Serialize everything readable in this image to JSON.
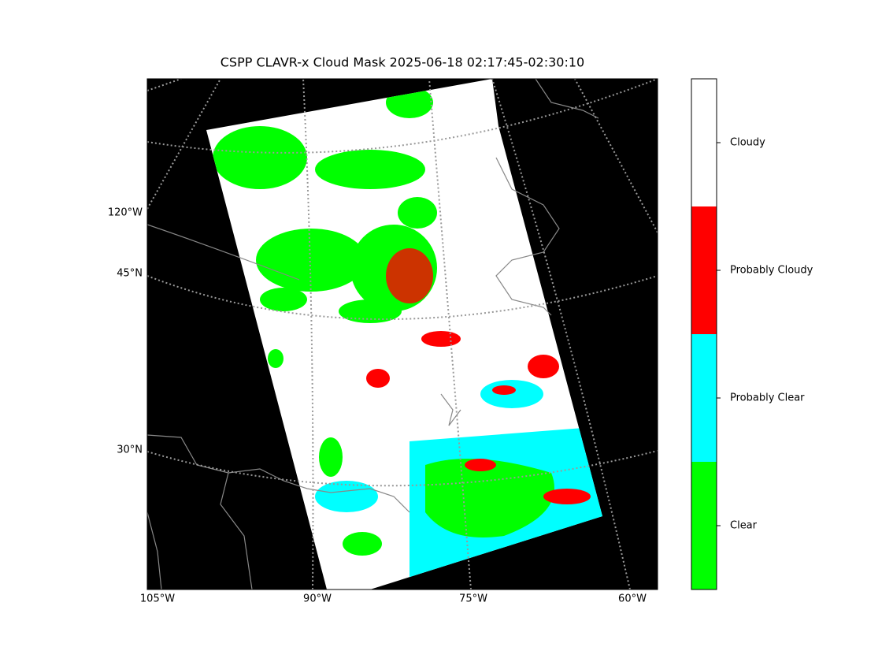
{
  "title": "CSPP CLAVR-x Cloud Mask 2025-06-18 02:17:45-02:30:10",
  "map": {
    "lon_labels": [
      "105°W",
      "90°W",
      "75°W",
      "60°W"
    ],
    "lat_labels": [
      "120°W",
      "45°N",
      "30°N"
    ]
  },
  "colorbar": {
    "classes": [
      {
        "label": "Clear",
        "color": "#00ff00"
      },
      {
        "label": "Probably Clear",
        "color": "#00ffff"
      },
      {
        "label": "Probably Cloudy",
        "color": "#ff0000"
      },
      {
        "label": "Cloudy",
        "color": "#ffffff"
      }
    ]
  }
}
